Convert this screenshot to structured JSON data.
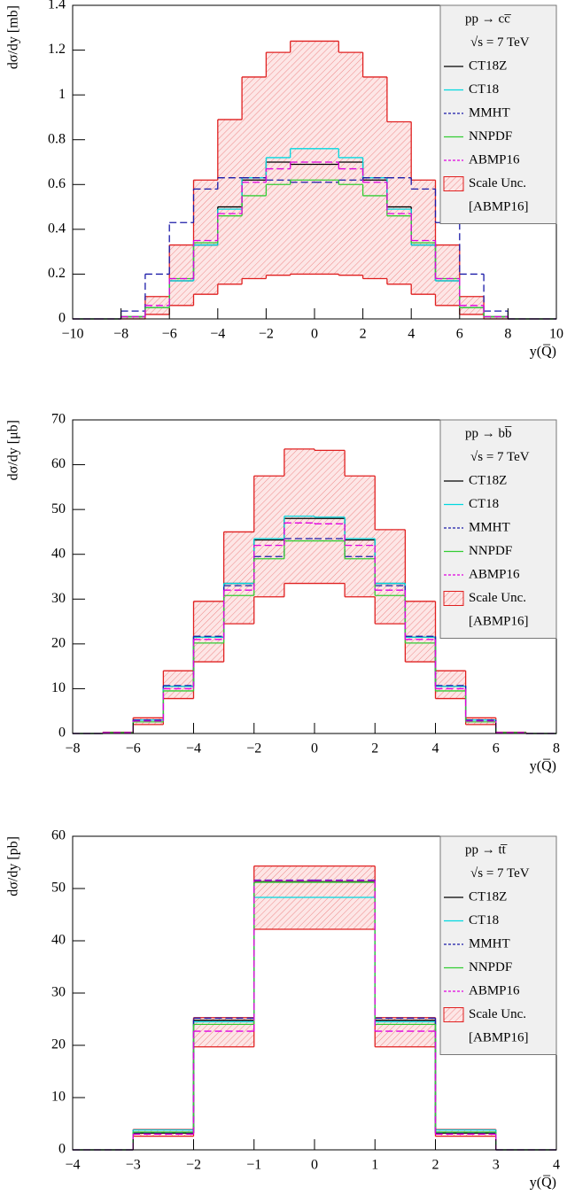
{
  "chart_data": [
    {
      "type": "step-histogram",
      "legend_title": [
        "pp → cc̅",
        "√s = 7 TeV"
      ],
      "y_label": "dσ/dy [mb]",
      "x_label": "y(Q̅)",
      "bins": [
        -10,
        -9,
        -8,
        -7,
        -6,
        -5,
        -4,
        -3,
        -2,
        -1,
        0,
        1,
        2,
        3,
        4,
        5,
        6,
        7,
        8,
        9,
        10
      ],
      "xlim": [
        -10,
        10
      ],
      "xticks": [
        {
          "value": -10,
          "label": "−10"
        },
        {
          "value": -8,
          "label": "−8"
        },
        {
          "value": -6,
          "label": "−6"
        },
        {
          "value": -4,
          "label": "−4"
        },
        {
          "value": -2,
          "label": "−2"
        },
        0,
        2,
        4,
        6,
        8,
        10
      ],
      "ylim": [
        0,
        1.4
      ],
      "yticks": [
        0,
        0.2,
        0.4,
        0.6,
        0.8,
        1,
        1.2,
        1.4
      ],
      "band": {
        "name": "Scale Unc.",
        "source": "[ABMP16]",
        "color": "#e02020",
        "lower": [
          0,
          0,
          0,
          0.02,
          0.06,
          0.11,
          0.155,
          0.18,
          0.195,
          0.2,
          0.2,
          0.195,
          0.18,
          0.155,
          0.11,
          0.06,
          0.02,
          0,
          0,
          0
        ],
        "upper": [
          0,
          0,
          0.01,
          0.1,
          0.33,
          0.62,
          0.89,
          1.08,
          1.19,
          1.24,
          1.24,
          1.19,
          1.08,
          0.88,
          0.62,
          0.33,
          0.1,
          0.01,
          0,
          0
        ]
      },
      "series": [
        {
          "name": "CT18Z",
          "color": "#000000",
          "style": "solid",
          "values": [
            0,
            0,
            0.01,
            0.05,
            0.17,
            0.33,
            0.5,
            0.62,
            0.7,
            0.69,
            0.69,
            0.7,
            0.62,
            0.5,
            0.33,
            0.17,
            0.05,
            0.01,
            0,
            0
          ]
        },
        {
          "name": "CT18",
          "color": "#00d8e0",
          "style": "solid",
          "values": [
            0,
            0,
            0.01,
            0.05,
            0.17,
            0.33,
            0.49,
            0.63,
            0.72,
            0.76,
            0.76,
            0.72,
            0.63,
            0.49,
            0.33,
            0.17,
            0.05,
            0.01,
            0,
            0
          ]
        },
        {
          "name": "MMHT",
          "color": "#1a1aa8",
          "style": "dashed",
          "values": [
            0,
            0,
            0.035,
            0.2,
            0.43,
            0.58,
            0.63,
            0.63,
            0.62,
            0.61,
            0.61,
            0.62,
            0.63,
            0.63,
            0.58,
            0.43,
            0.2,
            0.035,
            0,
            0
          ]
        },
        {
          "name": "NNPDF",
          "color": "#33cc33",
          "style": "solid",
          "values": [
            0,
            0,
            0.01,
            0.05,
            0.18,
            0.34,
            0.46,
            0.55,
            0.6,
            0.62,
            0.62,
            0.6,
            0.55,
            0.46,
            0.34,
            0.18,
            0.05,
            0.01,
            0,
            0
          ]
        },
        {
          "name": "ABMP16",
          "color": "#e000e0",
          "style": "dashed",
          "values": [
            0,
            0,
            0.01,
            0.06,
            0.18,
            0.35,
            0.47,
            0.61,
            0.67,
            0.7,
            0.7,
            0.67,
            0.61,
            0.47,
            0.35,
            0.18,
            0.06,
            0.01,
            0,
            0
          ]
        }
      ]
    },
    {
      "type": "step-histogram",
      "legend_title": [
        "pp → bb̅",
        "√s = 7 TeV"
      ],
      "y_label": "dσ/dy [μb]",
      "x_label": "y(Q̅)",
      "bins": [
        -8,
        -7,
        -6,
        -5,
        -4,
        -3,
        -2,
        -1,
        0,
        1,
        2,
        3,
        4,
        5,
        6,
        7,
        8
      ],
      "xlim": [
        -8,
        8
      ],
      "xticks": [
        {
          "value": -8,
          "label": "−8"
        },
        {
          "value": -6,
          "label": "−6"
        },
        {
          "value": -4,
          "label": "−4"
        },
        {
          "value": -2,
          "label": "−2"
        },
        0,
        2,
        4,
        6,
        8
      ],
      "ylim": [
        0,
        70
      ],
      "yticks": [
        0,
        10,
        20,
        30,
        40,
        50,
        60,
        70
      ],
      "band": {
        "name": "Scale Unc.",
        "source": "[ABMP16]",
        "color": "#e02020",
        "lower": [
          0,
          0.1,
          2,
          7.8,
          16,
          24.5,
          30.5,
          33.5,
          33.5,
          30.5,
          24.5,
          16,
          7.8,
          2,
          0.1,
          0
        ],
        "upper": [
          0,
          0.3,
          3.5,
          14,
          29.5,
          45,
          57.5,
          63.5,
          63.2,
          57.5,
          45.5,
          29.5,
          14,
          3.5,
          0.3,
          0
        ]
      },
      "series": [
        {
          "name": "CT18Z",
          "color": "#000000",
          "style": "solid",
          "values": [
            0,
            0.2,
            3,
            10.5,
            21.5,
            33.5,
            43.2,
            48,
            48,
            43.2,
            33.5,
            21.5,
            10.5,
            3,
            0.2,
            0
          ]
        },
        {
          "name": "CT18",
          "color": "#00d8e0",
          "style": "solid",
          "values": [
            0,
            0.2,
            3,
            10.5,
            21.5,
            33.5,
            43.5,
            48.5,
            48.3,
            43.5,
            33.5,
            21.5,
            10.5,
            3,
            0.2,
            0
          ]
        },
        {
          "name": "MMHT",
          "color": "#1a1aa8",
          "style": "dashed",
          "values": [
            0,
            0.2,
            3,
            10.7,
            21.7,
            33,
            39.5,
            43.5,
            43.5,
            39.5,
            33,
            21.7,
            10.7,
            3,
            0.2,
            0
          ]
        },
        {
          "name": "NNPDF",
          "color": "#33cc33",
          "style": "solid",
          "values": [
            0,
            0.2,
            2.6,
            9.5,
            20.2,
            30.8,
            39,
            43,
            43,
            39,
            30.8,
            20.2,
            9.5,
            2.6,
            0.2,
            0
          ]
        },
        {
          "name": "ABMP16",
          "color": "#e000e0",
          "style": "dashed",
          "values": [
            0,
            0.2,
            2.8,
            10,
            21,
            32,
            42,
            47,
            46.8,
            42,
            32,
            21,
            10,
            2.8,
            0.2,
            0
          ]
        }
      ]
    },
    {
      "type": "step-histogram",
      "legend_title": [
        "pp → tt̅",
        "√s = 7 TeV"
      ],
      "y_label": "dσ/dy [pb]",
      "x_label": "y(Q̅)",
      "bins": [
        -4,
        -3,
        -2,
        -1,
        0,
        1,
        2,
        3,
        4
      ],
      "xlim": [
        -4,
        4
      ],
      "xticks": [
        {
          "value": -4,
          "label": "−4"
        },
        {
          "value": -3,
          "label": "−3"
        },
        {
          "value": -2,
          "label": "−2"
        },
        {
          "value": -1,
          "label": "−1"
        },
        0,
        1,
        2,
        3,
        4
      ],
      "ylim": [
        0,
        60
      ],
      "yticks": [
        0,
        10,
        20,
        30,
        40,
        50,
        60
      ],
      "band": {
        "name": "Scale Unc.",
        "source": "[ABMP16]",
        "color": "#e02020",
        "lower": [
          0,
          2.6,
          19.7,
          42.2,
          42.2,
          19.7,
          2.6,
          0
        ],
        "upper": [
          0,
          3.9,
          25.3,
          54.3,
          54.3,
          25.3,
          3.9,
          0
        ]
      },
      "series": [
        {
          "name": "CT18Z",
          "color": "#000000",
          "style": "solid",
          "values": [
            0,
            3.2,
            24.8,
            51.3,
            51.3,
            24.8,
            3.2,
            0
          ]
        },
        {
          "name": "CT18",
          "color": "#00d8e0",
          "style": "solid",
          "values": [
            0,
            3.8,
            24.5,
            48.3,
            48.3,
            24.5,
            3.8,
            0
          ]
        },
        {
          "name": "MMHT",
          "color": "#1a1aa8",
          "style": "dashed",
          "values": [
            0,
            3.3,
            25.2,
            51.6,
            51.6,
            25.2,
            3.3,
            0
          ]
        },
        {
          "name": "NNPDF",
          "color": "#33cc33",
          "style": "solid",
          "values": [
            0,
            3.4,
            24,
            51.2,
            51.2,
            24,
            3.4,
            0
          ]
        },
        {
          "name": "ABMP16",
          "color": "#e000e0",
          "style": "dashed",
          "values": [
            0,
            3,
            22.7,
            51.5,
            51.5,
            22.7,
            3,
            0
          ]
        }
      ]
    }
  ]
}
